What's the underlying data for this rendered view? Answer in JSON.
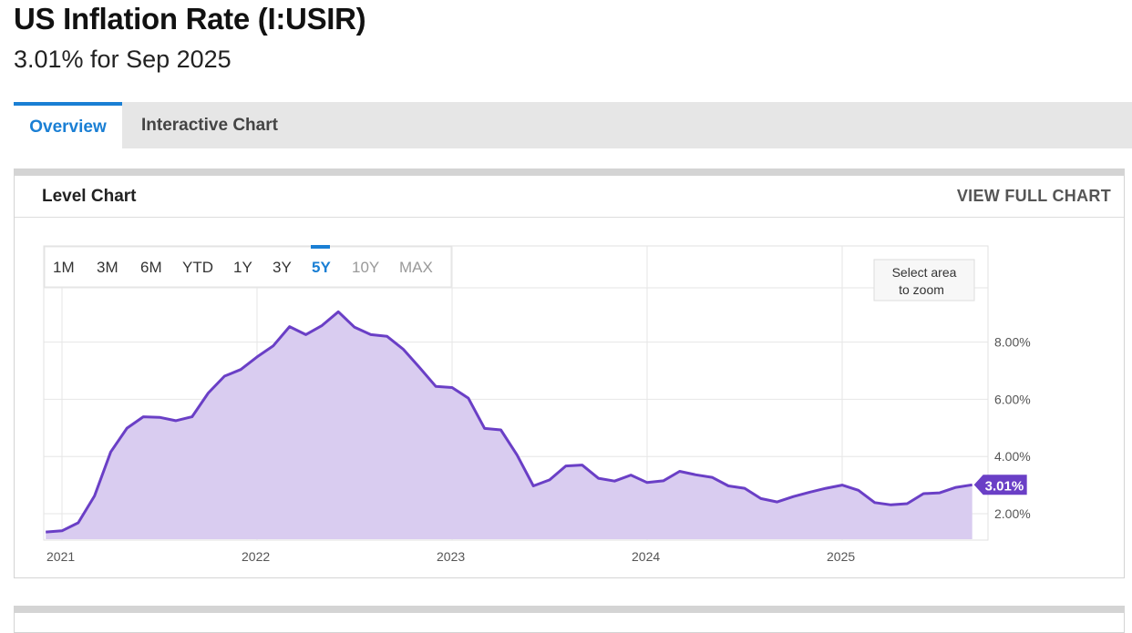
{
  "header": {
    "title": "US Inflation Rate (I:USIR)",
    "subtitle": "3.01% for Sep 2025"
  },
  "tabs": [
    {
      "label": "Overview",
      "active": true
    },
    {
      "label": "Interactive Chart",
      "active": false
    }
  ],
  "card": {
    "title": "Level Chart",
    "view_full": "VIEW FULL CHART"
  },
  "range_buttons": [
    {
      "label": "1M",
      "state": "normal"
    },
    {
      "label": "3M",
      "state": "normal"
    },
    {
      "label": "6M",
      "state": "normal"
    },
    {
      "label": "YTD",
      "state": "normal"
    },
    {
      "label": "1Y",
      "state": "normal"
    },
    {
      "label": "3Y",
      "state": "normal"
    },
    {
      "label": "5Y",
      "state": "active"
    },
    {
      "label": "10Y",
      "state": "disabled"
    },
    {
      "label": "MAX",
      "state": "disabled"
    }
  ],
  "zoom_hint": [
    "Select area",
    "to zoom"
  ],
  "colors": {
    "accent": "#1a7fd4",
    "line": "#6a3fc6",
    "fill": "#d9ccf0",
    "label_bg": "#6a3fc6"
  },
  "chart_data": {
    "type": "area",
    "title": "",
    "xlabel": "",
    "ylabel": "",
    "x_ticks": [
      "2021",
      "2022",
      "2023",
      "2024",
      "2025"
    ],
    "y_ticks": [
      "2.00%",
      "4.00%",
      "6.00%",
      "8.00%"
    ],
    "ylim": [
      1.0,
      10.0
    ],
    "last_value_label": "3.01%",
    "grid": true,
    "series": [
      {
        "name": "",
        "start": "2020-12",
        "values": [
          1.36,
          1.4,
          1.68,
          2.62,
          4.16,
          4.99,
          5.39,
          5.37,
          5.25,
          5.39,
          6.22,
          6.81,
          7.04,
          7.48,
          7.87,
          8.54,
          8.26,
          8.58,
          9.06,
          8.52,
          8.26,
          8.2,
          7.75,
          7.11,
          6.45,
          6.41,
          6.04,
          4.98,
          4.93,
          4.05,
          2.97,
          3.18,
          3.67,
          3.7,
          3.24,
          3.14,
          3.35,
          3.09,
          3.15,
          3.48,
          3.36,
          3.27,
          2.97,
          2.89,
          2.53,
          2.41,
          2.6,
          2.75,
          2.89,
          3.0,
          2.82,
          2.39,
          2.31,
          2.35,
          2.7,
          2.73,
          2.92,
          3.01
        ]
      }
    ]
  }
}
